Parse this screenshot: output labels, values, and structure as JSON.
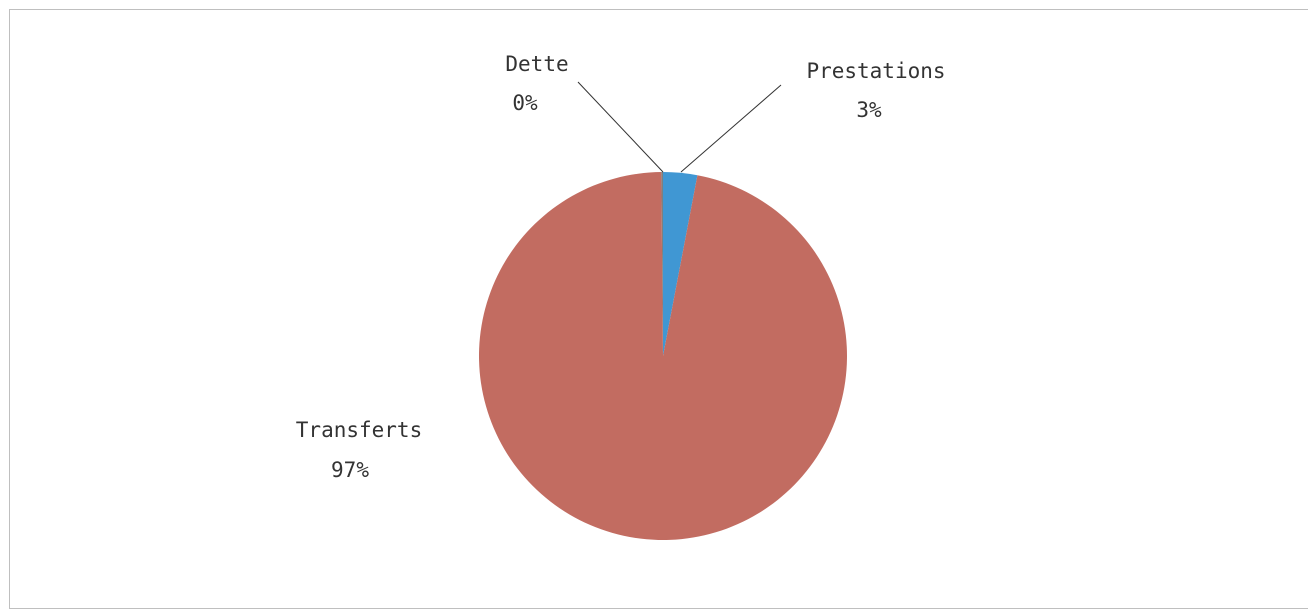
{
  "chart_data": {
    "type": "pie",
    "title": "",
    "slices": [
      {
        "label": "Prestations",
        "value": 3,
        "display": "3%",
        "color": "#4097d3"
      },
      {
        "label": "Transferts",
        "value": 97,
        "display": "97%",
        "color": "#c26c61"
      },
      {
        "label": "Dette",
        "value": 0.15,
        "display": "0%",
        "color": "#7f7f7f"
      }
    ],
    "legend": "none"
  }
}
